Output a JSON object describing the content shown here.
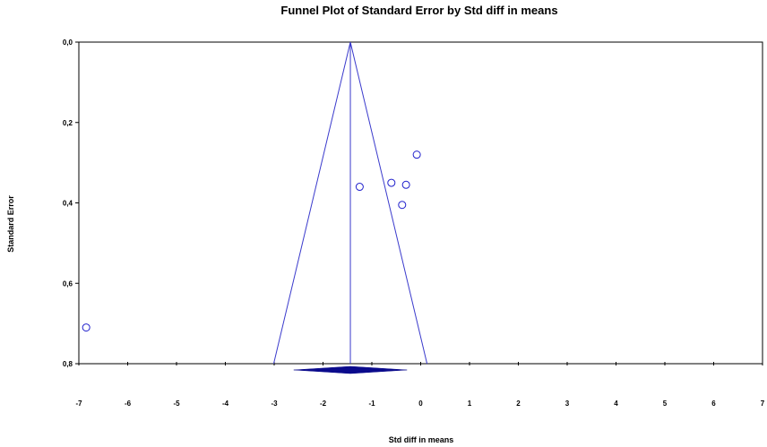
{
  "chart_data": {
    "type": "scatter",
    "title": "Funnel Plot of Standard Error by Std diff in means",
    "xlabel": "Std diff in means",
    "ylabel": "Standard Error",
    "xlim": [
      -7,
      7
    ],
    "ylim": [
      0.0,
      0.8
    ],
    "y_inverted": true,
    "x_ticks": [
      -7,
      -6,
      -5,
      -4,
      -3,
      -2,
      -1,
      0,
      1,
      2,
      3,
      4,
      5,
      6,
      7
    ],
    "x_tick_labels": [
      "-7",
      "-6",
      "-5",
      "-4",
      "-3",
      "-2",
      "-1",
      "0",
      "1",
      "2",
      "3",
      "4",
      "5",
      "6",
      "7"
    ],
    "y_ticks": [
      0.0,
      0.2,
      0.4,
      0.6,
      0.8
    ],
    "y_tick_labels": [
      "0,0",
      "0,2",
      "0,4",
      "0,6",
      "0,8"
    ],
    "grid": false,
    "points": [
      {
        "x": -0.08,
        "y": 0.28
      },
      {
        "x": -1.25,
        "y": 0.36
      },
      {
        "x": -0.6,
        "y": 0.35
      },
      {
        "x": -0.3,
        "y": 0.355
      },
      {
        "x": -0.38,
        "y": 0.405
      },
      {
        "x": -6.85,
        "y": 0.71
      }
    ],
    "pooled_effect": -1.44,
    "funnel_bottom_x": [
      -3.01,
      0.13
    ],
    "summary_diamond": {
      "center": -1.44,
      "lower": -2.6,
      "upper": -0.28
    },
    "colors": {
      "marker": "#1f1fcc",
      "funnel": "#3a3acc",
      "diamond": "#0a0a8c",
      "axis": "#000000"
    }
  }
}
